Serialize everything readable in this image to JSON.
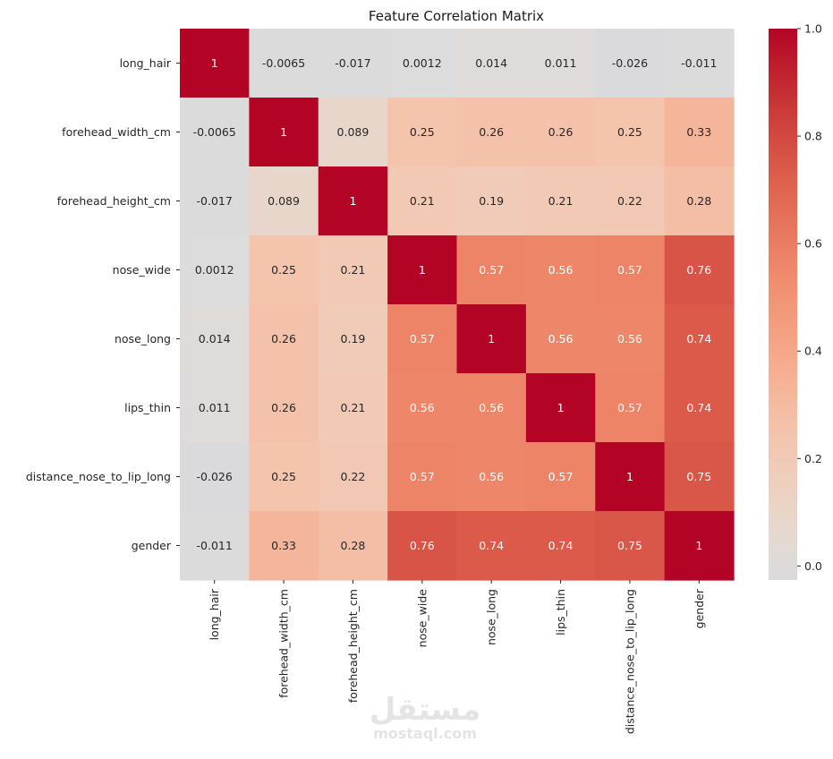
{
  "chart_data": {
    "type": "heatmap",
    "title": "Feature Correlation Matrix",
    "xlabel": "",
    "ylabel": "",
    "row_labels": [
      "long_hair",
      "forehead_width_cm",
      "forehead_height_cm",
      "nose_wide",
      "nose_long",
      "lips_thin",
      "distance_nose_to_lip_long",
      "gender"
    ],
    "col_labels": [
      "long_hair",
      "forehead_width_cm",
      "forehead_height_cm",
      "nose_wide",
      "nose_long",
      "lips_thin",
      "distance_nose_to_lip_long",
      "gender"
    ],
    "values": [
      [
        1,
        -0.0065,
        -0.017,
        0.0012,
        0.014,
        0.011,
        -0.026,
        -0.011
      ],
      [
        -0.0065,
        1,
        0.089,
        0.25,
        0.26,
        0.26,
        0.25,
        0.33
      ],
      [
        -0.017,
        0.089,
        1,
        0.21,
        0.19,
        0.21,
        0.22,
        0.28
      ],
      [
        0.0012,
        0.25,
        0.21,
        1,
        0.57,
        0.56,
        0.57,
        0.76
      ],
      [
        0.014,
        0.26,
        0.19,
        0.57,
        1,
        0.56,
        0.56,
        0.74
      ],
      [
        0.011,
        0.26,
        0.21,
        0.56,
        0.56,
        1,
        0.57,
        0.74
      ],
      [
        -0.026,
        0.25,
        0.22,
        0.57,
        0.56,
        0.57,
        1,
        0.75
      ],
      [
        -0.011,
        0.33,
        0.28,
        0.76,
        0.74,
        0.74,
        0.75,
        1
      ]
    ],
    "labels": [
      [
        "1",
        "-0.0065",
        "-0.017",
        "0.0012",
        "0.014",
        "0.011",
        "-0.026",
        "-0.011"
      ],
      [
        "-0.0065",
        "1",
        "0.089",
        "0.25",
        "0.26",
        "0.26",
        "0.25",
        "0.33"
      ],
      [
        "-0.017",
        "0.089",
        "1",
        "0.21",
        "0.19",
        "0.21",
        "0.22",
        "0.28"
      ],
      [
        "0.0012",
        "0.25",
        "0.21",
        "1",
        "0.57",
        "0.56",
        "0.57",
        "0.76"
      ],
      [
        "0.014",
        "0.26",
        "0.19",
        "0.57",
        "1",
        "0.56",
        "0.56",
        "0.74"
      ],
      [
        "0.011",
        "0.26",
        "0.21",
        "0.56",
        "0.56",
        "1",
        "0.57",
        "0.74"
      ],
      [
        "-0.026",
        "0.25",
        "0.22",
        "0.57",
        "0.56",
        "0.57",
        "1",
        "0.75"
      ],
      [
        "-0.011",
        "0.33",
        "0.28",
        "0.76",
        "0.74",
        "0.74",
        "0.75",
        "1"
      ]
    ],
    "colormap": "coolwarm",
    "center": 0,
    "color_range": [
      -0.026,
      1.0
    ],
    "colorbar": {
      "position": "right",
      "ticks": [
        0.0,
        0.2,
        0.4,
        0.6,
        0.8,
        1.0
      ],
      "tick_labels": [
        "0.0",
        "0.2",
        "0.4",
        "0.6",
        "0.8",
        "1.0"
      ]
    },
    "colors": {
      "center": "#dddcdc",
      "max": "#b40426",
      "text_dark": "#262626",
      "text_light": "#ffffff"
    },
    "grid": false,
    "legend": "colorbar right"
  },
  "watermark": {
    "arabic": "مستقل",
    "latin": "mostaql.com"
  }
}
